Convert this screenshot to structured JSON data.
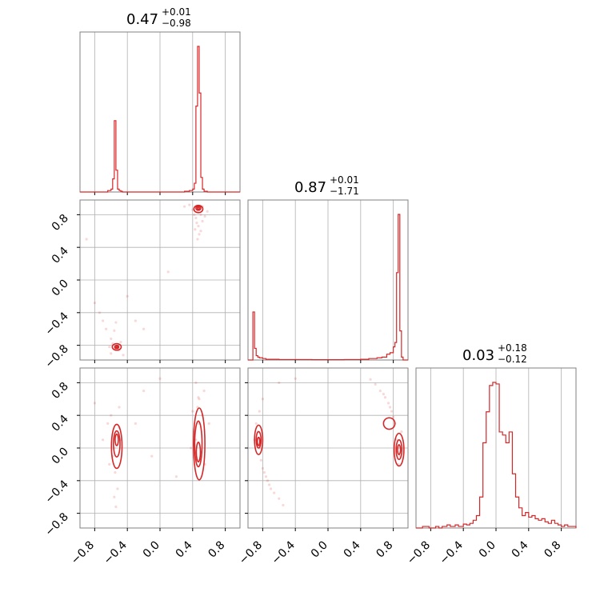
{
  "chart_data": {
    "type": "corner",
    "line_color": "#d62728",
    "grid": true,
    "axis_range": [
      -0.98,
      0.98
    ],
    "tick_labels": [
      "−0.8",
      "−0.4",
      "0.0",
      "0.4",
      "0.8"
    ],
    "tick_values": [
      -0.8,
      -0.4,
      0.0,
      0.4,
      0.8
    ],
    "titles": [
      {
        "median": "0.47",
        "plus": "+0.01",
        "minus": "−0.98"
      },
      {
        "median": "0.87",
        "plus": "+0.01",
        "minus": "−1.71"
      },
      {
        "median": "0.03",
        "plus": "+0.18",
        "minus": "−0.12"
      }
    ],
    "histograms": [
      {
        "x": [
          -0.98,
          -0.68,
          -0.64,
          -0.6,
          -0.58,
          -0.56,
          -0.54,
          -0.52,
          -0.5,
          -0.48,
          -0.46,
          -0.42,
          -0.38,
          0.1,
          0.3,
          0.36,
          0.4,
          0.42,
          0.44,
          0.46,
          0.48,
          0.5,
          0.52,
          0.54,
          0.58,
          0.66,
          0.98
        ],
        "y": [
          0,
          0,
          0.01,
          0.02,
          0.09,
          0.49,
          0.15,
          0.02,
          0.01,
          0.005,
          0,
          0,
          0,
          0,
          0.005,
          0.01,
          0.02,
          0.06,
          0.59,
          1.0,
          0.68,
          0.1,
          0.02,
          0.005,
          0,
          0,
          0
        ]
      },
      {
        "x": [
          -0.98,
          -0.94,
          -0.92,
          -0.9,
          -0.88,
          -0.86,
          -0.84,
          -0.8,
          -0.76,
          -0.6,
          -0.2,
          0.2,
          0.4,
          0.5,
          0.6,
          0.66,
          0.72,
          0.76,
          0.8,
          0.82,
          0.84,
          0.86,
          0.88,
          0.9,
          0.92,
          0.98
        ],
        "y": [
          0,
          0,
          0.33,
          0.08,
          0.03,
          0.02,
          0.015,
          0.01,
          0.005,
          0.003,
          0.002,
          0.003,
          0.005,
          0.01,
          0.015,
          0.02,
          0.04,
          0.05,
          0.09,
          0.12,
          0.6,
          1.0,
          0.2,
          0.02,
          0,
          0
        ]
      },
      {
        "x": [
          -0.98,
          -0.9,
          -0.82,
          -0.74,
          -0.7,
          -0.66,
          -0.6,
          -0.56,
          -0.5,
          -0.46,
          -0.4,
          -0.36,
          -0.32,
          -0.28,
          -0.24,
          -0.2,
          -0.16,
          -0.12,
          -0.08,
          -0.04,
          0.0,
          0.04,
          0.08,
          0.12,
          0.16,
          0.2,
          0.24,
          0.28,
          0.32,
          0.36,
          0.4,
          0.44,
          0.48,
          0.52,
          0.56,
          0.6,
          0.64,
          0.68,
          0.72,
          0.76,
          0.8,
          0.84,
          0.88,
          0.92,
          0.98
        ],
        "y": [
          0,
          0.01,
          0,
          0.01,
          0,
          0.01,
          0.02,
          0.01,
          0.02,
          0.01,
          0.025,
          0.02,
          0.03,
          0.05,
          0.08,
          0.2,
          0.55,
          0.75,
          0.92,
          0.94,
          0.93,
          0.62,
          0.6,
          0.55,
          0.62,
          0.35,
          0.2,
          0.13,
          0.08,
          0.1,
          0.07,
          0.08,
          0.06,
          0.05,
          0.06,
          0.04,
          0.03,
          0.05,
          0.03,
          0.02,
          0.01,
          0.02,
          0.01,
          0.01,
          0
        ]
      }
    ],
    "scatter": [
      {
        "xi": 0,
        "yi": 1,
        "points": [
          [
            0.46,
            0.84
          ],
          [
            0.48,
            0.86
          ],
          [
            0.5,
            0.8
          ],
          [
            0.44,
            0.76
          ],
          [
            0.52,
            0.72
          ],
          [
            0.47,
            0.66
          ],
          [
            0.5,
            0.6
          ],
          [
            0.45,
            0.7
          ],
          [
            0.42,
            0.8
          ],
          [
            0.55,
            0.78
          ],
          [
            0.43,
            0.62
          ],
          [
            0.4,
            0.86
          ],
          [
            0.36,
            0.92
          ],
          [
            0.52,
            0.9
          ],
          [
            0.48,
            0.56
          ],
          [
            0.58,
            0.84
          ],
          [
            0.3,
            0.9
          ],
          [
            0.46,
            0.5
          ],
          [
            -0.55,
            -0.84
          ],
          [
            -0.52,
            -0.8
          ],
          [
            -0.58,
            -0.78
          ],
          [
            -0.5,
            -0.86
          ],
          [
            -0.6,
            -0.72
          ],
          [
            -0.56,
            -0.62
          ],
          [
            -0.62,
            -0.82
          ],
          [
            -0.48,
            -0.76
          ],
          [
            -0.66,
            -0.6
          ],
          [
            -0.7,
            -0.5
          ],
          [
            -0.74,
            -0.4
          ],
          [
            -0.45,
            -0.92
          ],
          [
            -0.54,
            -0.52
          ],
          [
            -0.8,
            -0.28
          ],
          [
            -0.6,
            -0.9
          ],
          [
            -0.3,
            -0.5
          ],
          [
            -0.2,
            -0.6
          ],
          [
            0.1,
            0.1
          ],
          [
            -0.9,
            0.5
          ],
          [
            -0.4,
            -0.2
          ]
        ],
        "contours": [
          {
            "cx": 0.47,
            "cy": 0.87,
            "rx": 0.055,
            "ry": 0.045
          },
          {
            "cx": 0.47,
            "cy": 0.88,
            "rx": 0.03,
            "ry": 0.025
          },
          {
            "cx": 0.47,
            "cy": 0.88,
            "rx": 0.012,
            "ry": 0.012
          },
          {
            "cx": -0.53,
            "cy": -0.82,
            "rx": 0.055,
            "ry": 0.04
          },
          {
            "cx": -0.53,
            "cy": -0.82,
            "rx": 0.025,
            "ry": 0.02
          },
          {
            "cx": -0.53,
            "cy": -0.82,
            "rx": 0.01,
            "ry": 0.01
          }
        ]
      },
      {
        "xi": 0,
        "yi": 2,
        "points": [
          [
            0.46,
            0.5
          ],
          [
            0.48,
            0.3
          ],
          [
            0.44,
            0.1
          ],
          [
            0.5,
            -0.05
          ],
          [
            0.46,
            -0.15
          ],
          [
            0.52,
            0.4
          ],
          [
            0.42,
            0.2
          ],
          [
            0.48,
            0.6
          ],
          [
            0.4,
            0.45
          ],
          [
            0.54,
            0.7
          ],
          [
            0.44,
            0.8
          ],
          [
            0.38,
            0.0
          ],
          [
            0.55,
            -0.2
          ],
          [
            0.6,
            0.3
          ],
          [
            0.47,
            0.62
          ],
          [
            -0.54,
            0.2
          ],
          [
            -0.56,
            0.0
          ],
          [
            -0.5,
            0.25
          ],
          [
            -0.58,
            -0.1
          ],
          [
            -0.55,
            -0.3
          ],
          [
            -0.52,
            -0.5
          ],
          [
            -0.6,
            0.4
          ],
          [
            -0.48,
            0.1
          ],
          [
            -0.62,
            -0.2
          ],
          [
            -0.56,
            -0.6
          ],
          [
            -0.54,
            -0.72
          ],
          [
            -0.64,
            0.3
          ],
          [
            -0.5,
            0.5
          ],
          [
            -0.7,
            0.1
          ],
          [
            -0.8,
            0.55
          ],
          [
            -0.2,
            0.7
          ],
          [
            -0.1,
            -0.1
          ],
          [
            0.2,
            -0.35
          ],
          [
            -0.3,
            0.3
          ],
          [
            0.0,
            0.85
          ]
        ],
        "contours": [
          {
            "cx": 0.48,
            "cy": 0.05,
            "rx": 0.07,
            "ry": 0.44
          },
          {
            "cx": 0.47,
            "cy": 0.05,
            "rx": 0.045,
            "ry": 0.28
          },
          {
            "cx": 0.47,
            "cy": -0.05,
            "rx": 0.025,
            "ry": 0.12
          },
          {
            "cx": -0.53,
            "cy": 0.02,
            "rx": 0.065,
            "ry": 0.27
          },
          {
            "cx": -0.53,
            "cy": 0.05,
            "rx": 0.04,
            "ry": 0.16
          },
          {
            "cx": -0.53,
            "cy": 0.1,
            "rx": 0.02,
            "ry": 0.07
          }
        ]
      },
      {
        "xi": 1,
        "yi": 2,
        "points": [
          [
            0.86,
            0.0
          ],
          [
            0.88,
            -0.1
          ],
          [
            0.84,
            0.1
          ],
          [
            0.9,
            0.2
          ],
          [
            0.82,
            0.3
          ],
          [
            0.78,
            0.45
          ],
          [
            0.74,
            0.55
          ],
          [
            0.7,
            0.62
          ],
          [
            0.64,
            0.7
          ],
          [
            0.58,
            0.78
          ],
          [
            0.52,
            0.84
          ],
          [
            0.86,
            -0.2
          ],
          [
            0.8,
            0.38
          ],
          [
            0.76,
            0.5
          ],
          [
            0.68,
            0.66
          ],
          [
            -0.86,
            0.2
          ],
          [
            -0.84,
            0.0
          ],
          [
            -0.82,
            -0.15
          ],
          [
            -0.8,
            -0.25
          ],
          [
            -0.76,
            -0.35
          ],
          [
            -0.72,
            -0.45
          ],
          [
            -0.66,
            -0.55
          ],
          [
            -0.6,
            -0.62
          ],
          [
            -0.55,
            -0.7
          ],
          [
            -0.7,
            -0.5
          ],
          [
            -0.78,
            -0.3
          ],
          [
            -0.88,
            0.3
          ],
          [
            -0.84,
            0.45
          ],
          [
            -0.8,
            0.6
          ],
          [
            -0.9,
            0.1
          ],
          [
            -0.6,
            0.8
          ],
          [
            -0.4,
            0.85
          ],
          [
            -0.74,
            -0.4
          ]
        ],
        "contours": [
          {
            "cx": 0.87,
            "cy": -0.02,
            "rx": 0.06,
            "ry": 0.2
          },
          {
            "cx": 0.87,
            "cy": -0.02,
            "rx": 0.035,
            "ry": 0.12
          },
          {
            "cx": 0.87,
            "cy": -0.02,
            "rx": 0.018,
            "ry": 0.06
          },
          {
            "cx": 0.75,
            "cy": 0.3,
            "rx": 0.07,
            "ry": 0.07
          },
          {
            "cx": -0.85,
            "cy": 0.1,
            "rx": 0.05,
            "ry": 0.18
          },
          {
            "cx": -0.85,
            "cy": 0.1,
            "rx": 0.03,
            "ry": 0.1
          },
          {
            "cx": -0.85,
            "cy": 0.08,
            "rx": 0.015,
            "ry": 0.05
          }
        ]
      }
    ]
  }
}
